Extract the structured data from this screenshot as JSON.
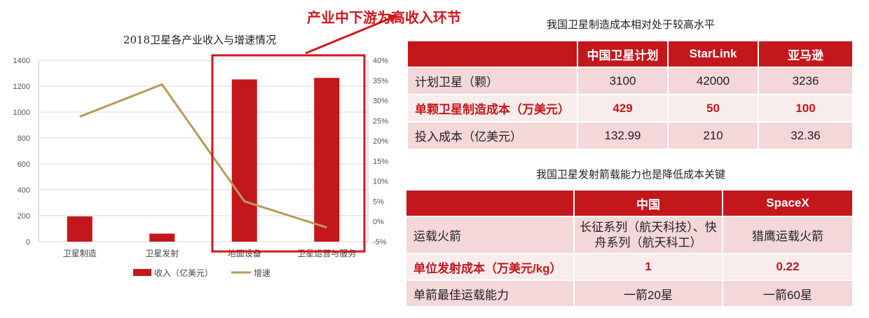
{
  "callout": "产业中下游为高收入环节",
  "chart_data": {
    "type": "bar",
    "title": "2018卫星各产业收入与增速情况",
    "categories": [
      "卫星制造",
      "卫星发射",
      "地面设备",
      "卫星运营与服务"
    ],
    "series": [
      {
        "name": "收入（亿美元）",
        "type": "bar",
        "axis": "left",
        "values": [
          195,
          62,
          1252,
          1264
        ]
      },
      {
        "name": "增速",
        "type": "line",
        "axis": "right",
        "values": [
          26.0,
          34.0,
          5.0,
          -1.5
        ]
      }
    ],
    "ylim": [
      0,
      1400
    ],
    "yticks": [
      "0",
      "200",
      "400",
      "600",
      "800",
      "1000",
      "1200",
      "1400"
    ],
    "y2lim": [
      -5,
      40
    ],
    "y2ticks": [
      "-5%",
      "0%",
      "5%",
      "10%",
      "15%",
      "20%",
      "25%",
      "30%",
      "35%",
      "40%"
    ],
    "xlabel": "",
    "ylabel": "",
    "legend_position": "bottom",
    "colors": {
      "bar": "#c4171c",
      "line": "#b99a5a"
    }
  },
  "table1": {
    "title": "我国卫星制造成本相对处于较高水平",
    "headers": [
      "",
      "中国卫星计划",
      "StarLink",
      "亚马逊"
    ],
    "rows": [
      [
        "计划卫星（颗）",
        "3100",
        "42000",
        "3236"
      ],
      [
        "单颗卫星制造成本（万美元）",
        "429",
        "50",
        "100"
      ],
      [
        "投入成本（亿美元）",
        "132.99",
        "210",
        "32.36"
      ]
    ],
    "highlight_row": 1
  },
  "table2": {
    "title": "我国卫星发射箭载能力也是降低成本关键",
    "headers": [
      "",
      "中国",
      "SpaceX"
    ],
    "rows": [
      [
        "运载火箭",
        "长征系列（航天科技）、快舟系列（航天科工）",
        "猎鹰运载火箭"
      ],
      [
        "单位发射成本（万美元/kg）",
        "1",
        "0.22"
      ],
      [
        "单箭最佳运载能力",
        "一箭20星",
        "一箭60星"
      ]
    ],
    "highlight_row": 1
  },
  "colors": {
    "accent": "#c4171c",
    "row_dark": "#f4d7d8",
    "row_light": "#f9ecec"
  }
}
